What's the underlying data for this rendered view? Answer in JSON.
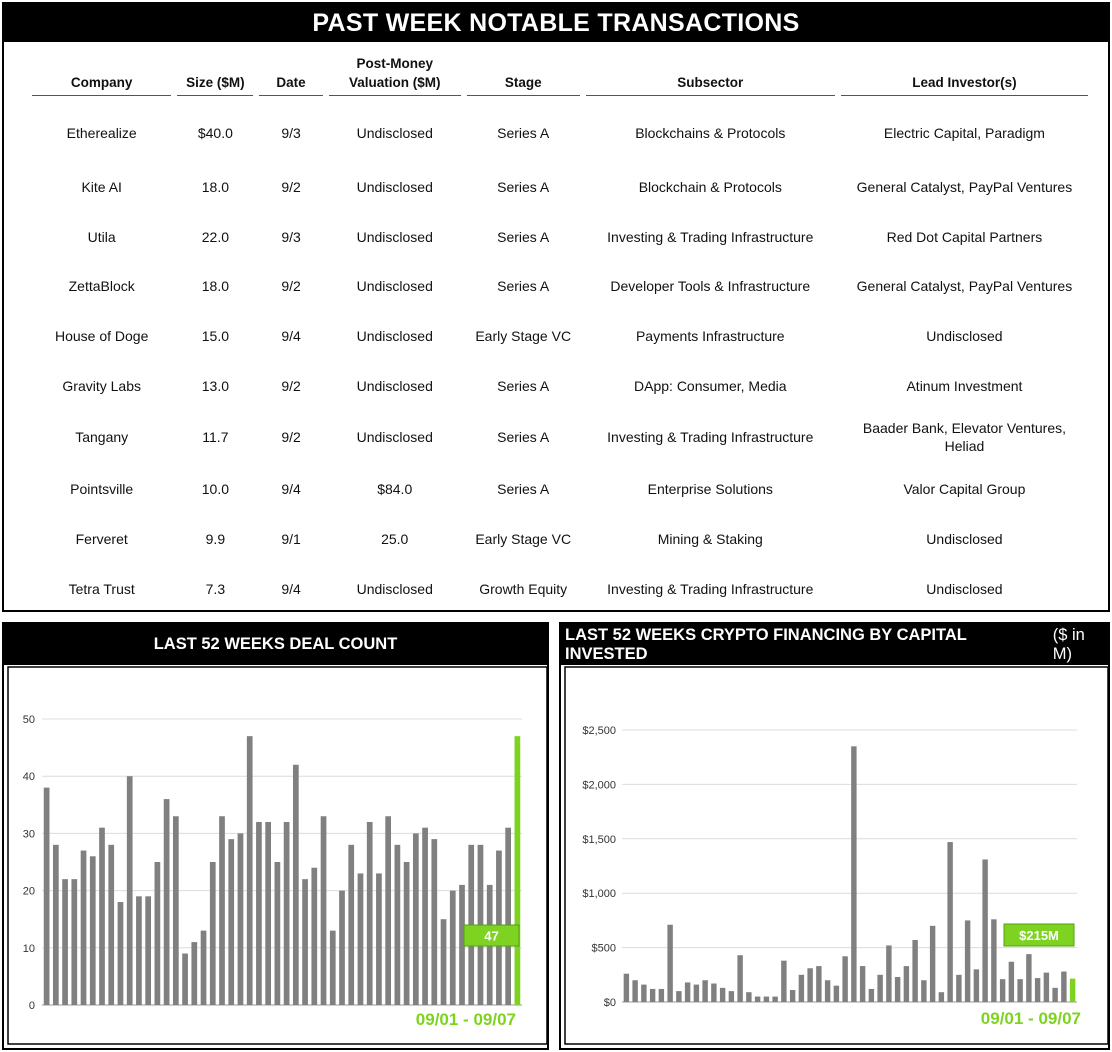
{
  "table": {
    "title": "PAST WEEK NOTABLE TRANSACTIONS",
    "headers": [
      "Company",
      "Size ($M)",
      "Date",
      "Post-Money Valuation ($M)",
      "Stage",
      "Subsector",
      "Lead Investor(s)"
    ],
    "rows": [
      [
        "Etherealize",
        "$40.0",
        "9/3",
        "Undisclosed",
        "Series A",
        "Blockchains & Protocols",
        "Electric Capital, Paradigm"
      ],
      [
        "Kite AI",
        "18.0",
        "9/2",
        "Undisclosed",
        "Series A",
        "Blockchain & Protocols",
        "General Catalyst, PayPal Ventures"
      ],
      [
        "Utila",
        "22.0",
        "9/3",
        "Undisclosed",
        "Series A",
        "Investing & Trading Infrastructure",
        "Red Dot Capital Partners"
      ],
      [
        "ZettaBlock",
        "18.0",
        "9/2",
        "Undisclosed",
        "Series A",
        "Developer Tools & Infrastructure",
        "General Catalyst, PayPal Ventures"
      ],
      [
        "House of Doge",
        "15.0",
        "9/4",
        "Undisclosed",
        "Early Stage VC",
        "Payments Infrastructure",
        "Undisclosed"
      ],
      [
        "Gravity Labs",
        "13.0",
        "9/2",
        "Undisclosed",
        "Series A",
        "DApp: Consumer, Media",
        "Atinum Investment"
      ],
      [
        "Tangany",
        "11.7",
        "9/2",
        "Undisclosed",
        "Series A",
        "Investing & Trading Infrastructure",
        "Baader Bank, Elevator Ventures, Heliad"
      ],
      [
        "Pointsville",
        "10.0",
        "9/4",
        "$84.0",
        "Series A",
        "Enterprise Solutions",
        "Valor Capital Group"
      ],
      [
        "Ferveret",
        "9.9",
        "9/1",
        "25.0",
        "Early Stage VC",
        "Mining & Staking",
        "Undisclosed"
      ],
      [
        "Tetra Trust",
        "7.3",
        "9/4",
        "Undisclosed",
        "Growth Equity",
        "Investing & Trading Infrastructure",
        "Undisclosed"
      ]
    ]
  },
  "colors": {
    "bar": "#808080",
    "highlight": "#7ed321",
    "header_bg": "#000000",
    "rule": "#3e5c6b"
  },
  "chart_data": [
    {
      "type": "bar",
      "title": "LAST 52 WEEKS DEAL COUNT",
      "ylim": [
        0,
        50
      ],
      "yticks": [
        0,
        10,
        20,
        30,
        40,
        50
      ],
      "ytick_labels": [
        "0",
        "10",
        "20",
        "30",
        "40",
        "50"
      ],
      "values": [
        38,
        28,
        22,
        22,
        27,
        26,
        31,
        28,
        18,
        40,
        19,
        19,
        25,
        36,
        33,
        9,
        11,
        13,
        25,
        33,
        29,
        30,
        47,
        32,
        32,
        25,
        32,
        42,
        22,
        24,
        33,
        13,
        20,
        28,
        23,
        32,
        23,
        33,
        28,
        25,
        30,
        31,
        29,
        15,
        20,
        21,
        28,
        28,
        21,
        27,
        31,
        47
      ],
      "highlight_index": 51,
      "callout": "47",
      "range_label": "09/01 - 09/07",
      "grid": true
    },
    {
      "type": "bar",
      "title": "LAST 52 WEEKS CRYPTO FINANCING BY CAPITAL INVESTED",
      "title_suffix": "($ in M)",
      "ylim": [
        0,
        2500
      ],
      "yticks": [
        0,
        500,
        1000,
        1500,
        2000,
        2500
      ],
      "ytick_labels": [
        "$0",
        "$500",
        "$1,000",
        "$1,500",
        "$2,000",
        "$2,500"
      ],
      "values": [
        260,
        200,
        160,
        120,
        120,
        710,
        100,
        180,
        160,
        200,
        170,
        130,
        100,
        430,
        90,
        50,
        50,
        50,
        380,
        110,
        250,
        310,
        330,
        200,
        150,
        420,
        2350,
        330,
        120,
        250,
        520,
        230,
        330,
        570,
        200,
        700,
        90,
        1470,
        250,
        750,
        300,
        1310,
        760,
        210,
        370,
        210,
        440,
        220,
        270,
        130,
        280,
        215
      ],
      "highlight_index": 51,
      "callout": "$215M",
      "range_label": "09/01 - 09/07",
      "grid": true
    }
  ]
}
